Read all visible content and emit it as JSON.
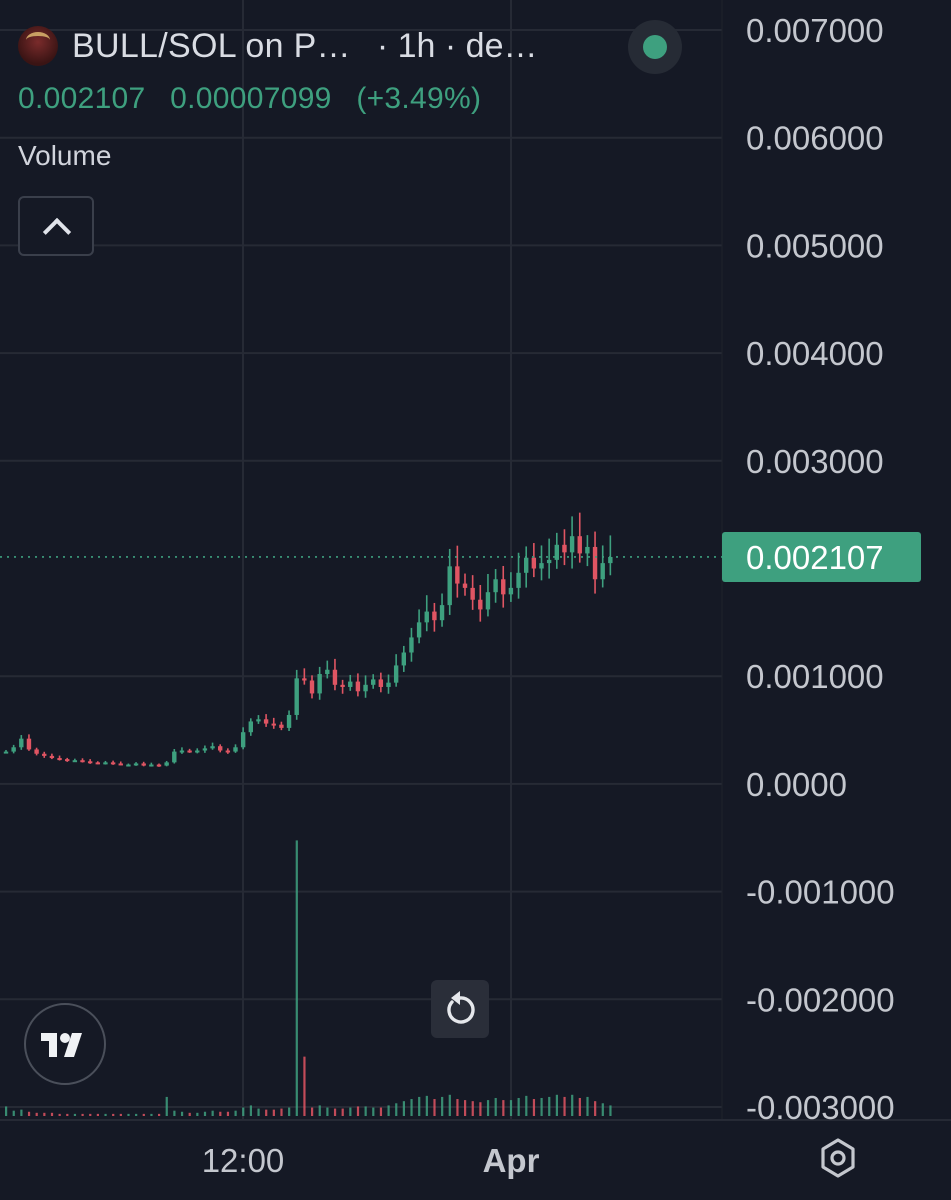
{
  "header": {
    "title": "BULL/SOL on P…",
    "subtitle": "· 1h · de…",
    "status_color": "#3ea07f"
  },
  "ohlc": {
    "price": "0.002107",
    "change": "0.00007099",
    "change_pct": "(+3.49%)"
  },
  "volume_label": "Volume",
  "icons": {
    "collapse": "chevron-up-icon",
    "logo": "tradingview-logo",
    "reset": "reset-icon",
    "settings": "settings-icon"
  },
  "colors": {
    "background": "#151925",
    "up": "#3ea07f",
    "down": "#e05563",
    "grid": "#262a35",
    "axis_text": "#c4c7ce"
  },
  "chart_data": {
    "type": "candlestick",
    "title": "BULL/SOL on P…",
    "interval": "1h",
    "last_price": 0.002107,
    "ylim": [
      -0.003,
      0.007
    ],
    "y_ticks": [
      "0.007000",
      "0.006000",
      "0.005000",
      "0.004000",
      "0.003000",
      "0.001000",
      "0.0000",
      "-0.001000",
      "-0.002000",
      "-0.003000"
    ],
    "y_tick_values": [
      0.007,
      0.006,
      0.005,
      0.004,
      0.003,
      0.001,
      0.0,
      -0.001,
      -0.002,
      -0.003
    ],
    "x_ticks": [
      "12:00",
      "Apr"
    ],
    "price_series": [
      0.0003,
      0.00034,
      0.00042,
      0.00032,
      0.00028,
      0.00026,
      0.00024,
      0.00023,
      0.00022,
      0.00022,
      0.00021,
      0.0002,
      0.00019,
      0.0002,
      0.00019,
      0.00018,
      0.00018,
      0.00019,
      0.00017,
      0.00018,
      0.00017,
      0.0002,
      0.0003,
      0.00031,
      0.0003,
      0.00031,
      0.00033,
      0.00035,
      0.00031,
      0.0003,
      0.00034,
      0.00048,
      0.00058,
      0.0006,
      0.00056,
      0.00055,
      0.00052,
      0.00064,
      0.00098,
      0.00096,
      0.00084,
      0.00102,
      0.00106,
      0.00092,
      0.0009,
      0.00095,
      0.00086,
      0.00092,
      0.00097,
      0.0009,
      0.00094,
      0.0011,
      0.00122,
      0.00136,
      0.0015,
      0.0016,
      0.00152,
      0.00166,
      0.00202,
      0.00186,
      0.00182,
      0.00171,
      0.00162,
      0.00178,
      0.0019,
      0.00176,
      0.00182,
      0.00196,
      0.0021,
      0.002,
      0.00205,
      0.00208,
      0.00222,
      0.00215,
      0.0023,
      0.00214,
      0.0022,
      0.0019,
      0.00205,
      0.002107
    ],
    "volume_series": [
      0.9,
      0.5,
      0.6,
      0.4,
      0.3,
      0.3,
      0.3,
      0.2,
      0.2,
      0.2,
      0.2,
      0.2,
      0.2,
      0.2,
      0.2,
      0.2,
      0.2,
      0.2,
      0.2,
      0.2,
      0.2,
      1.8,
      0.5,
      0.4,
      0.3,
      0.3,
      0.4,
      0.5,
      0.4,
      0.4,
      0.5,
      0.8,
      1.0,
      0.7,
      0.6,
      0.6,
      0.7,
      0.8,
      26.0,
      5.6,
      0.8,
      1.0,
      0.8,
      0.7,
      0.7,
      0.8,
      0.9,
      0.9,
      0.8,
      0.8,
      1.0,
      1.2,
      1.4,
      1.6,
      1.8,
      1.9,
      1.6,
      1.8,
      2.0,
      1.6,
      1.5,
      1.4,
      1.3,
      1.5,
      1.7,
      1.5,
      1.5,
      1.7,
      1.9,
      1.6,
      1.7,
      1.8,
      2.0,
      1.8,
      2.0,
      1.7,
      1.8,
      1.4,
      1.2,
      1.0
    ]
  }
}
